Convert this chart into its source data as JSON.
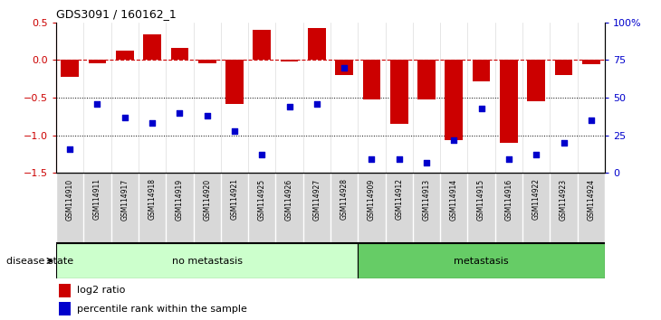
{
  "title": "GDS3091 / 160162_1",
  "samples": [
    "GSM114910",
    "GSM114911",
    "GSM114917",
    "GSM114918",
    "GSM114919",
    "GSM114920",
    "GSM114921",
    "GSM114925",
    "GSM114926",
    "GSM114927",
    "GSM114928",
    "GSM114909",
    "GSM114912",
    "GSM114913",
    "GSM114914",
    "GSM114915",
    "GSM114916",
    "GSM114922",
    "GSM114923",
    "GSM114924"
  ],
  "log2_ratio": [
    -0.22,
    -0.04,
    0.12,
    0.34,
    0.16,
    -0.04,
    -0.58,
    0.4,
    -0.02,
    0.42,
    -0.2,
    -0.52,
    -0.85,
    -0.52,
    -1.06,
    -0.28,
    -1.1,
    -0.55,
    -0.2,
    -0.05
  ],
  "percentile_rank": [
    16,
    46,
    37,
    33,
    40,
    38,
    28,
    12,
    44,
    46,
    70,
    9,
    9,
    7,
    22,
    43,
    9,
    12,
    20,
    35
  ],
  "no_metastasis_count": 11,
  "metastasis_count": 9,
  "bar_color": "#cc0000",
  "dot_color": "#0000cc",
  "zero_line_color": "#cc0000",
  "dotted_line_color": "#000000",
  "ylim_left": [
    -1.5,
    0.5
  ],
  "ylim_right": [
    0,
    100
  ],
  "yticks_left": [
    -1.5,
    -1.0,
    -0.5,
    0.0,
    0.5
  ],
  "yticks_right": [
    0,
    25,
    50,
    75,
    100
  ],
  "yticklabels_right": [
    "0",
    "25",
    "50",
    "75",
    "100%"
  ],
  "no_metastasis_color": "#ccffcc",
  "metastasis_color": "#66cc66",
  "label_log2": "log2 ratio",
  "label_pct": "percentile rank within the sample",
  "disease_state_label": "disease state"
}
